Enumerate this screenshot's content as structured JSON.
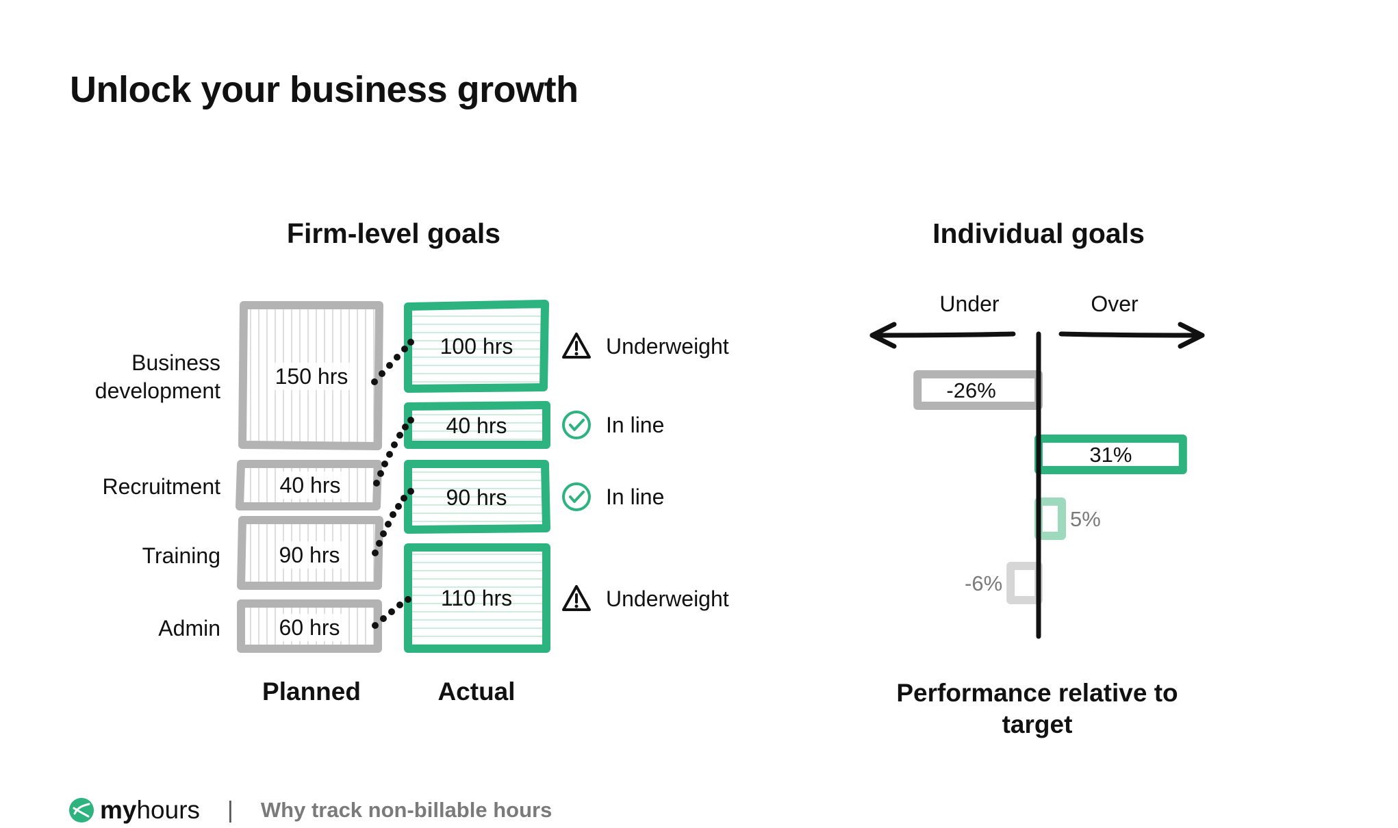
{
  "title": "Unlock your business growth",
  "firm": {
    "title": "Firm-level goals",
    "rows": [
      {
        "category": "Business\ndevelopment",
        "planned": "150 hrs",
        "actual": "100 hrs",
        "status": "Underweight",
        "status_icon": "warning-icon"
      },
      {
        "category": "Recruitment",
        "planned": "40 hrs",
        "actual": "40 hrs",
        "status": "In line",
        "status_icon": "check-circle-icon"
      },
      {
        "category": "Training",
        "planned": "90 hrs",
        "actual": "90 hrs",
        "status": "In line",
        "status_icon": "check-circle-icon"
      },
      {
        "category": "Admin",
        "planned": "60 hrs",
        "actual": "110 hrs",
        "status": "Underweight",
        "status_icon": "warning-icon"
      }
    ],
    "planned_label": "Planned",
    "actual_label": "Actual"
  },
  "individual": {
    "title": "Individual goals",
    "under_label": "Under",
    "over_label": "Over",
    "caption": "Performance relative to target"
  },
  "chart_data": {
    "type": "bar",
    "orientation": "horizontal",
    "values": [
      -26,
      31,
      5,
      -6
    ],
    "value_labels": [
      "-26%",
      "31%",
      "5%",
      "-6%"
    ],
    "xlim": [
      -40,
      40
    ]
  },
  "colors": {
    "planned": "#b3b3b3",
    "actual": "#2db37f",
    "actual_light": "#9dd9bd",
    "neutral_light": "#d6d6d6",
    "text_muted": "#7a7a7a"
  },
  "footer": {
    "brand_strong": "my",
    "brand_light": "hours",
    "separator": "|",
    "text": "Why track non-billable hours"
  }
}
